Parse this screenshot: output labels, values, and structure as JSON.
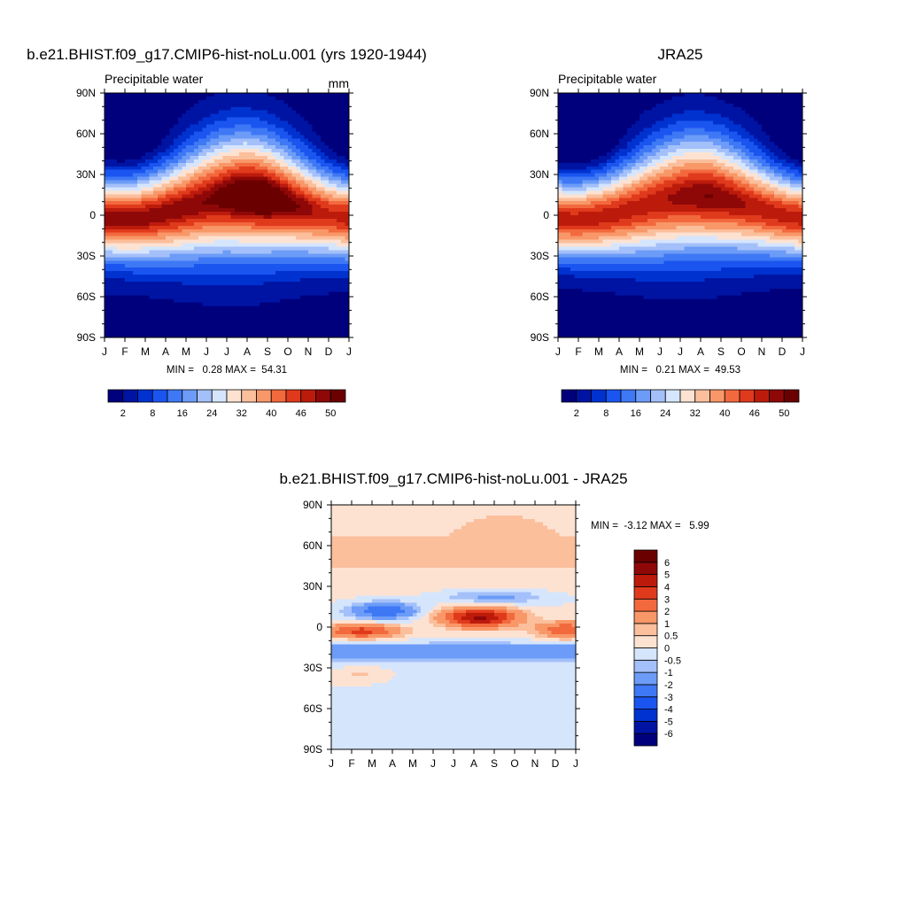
{
  "chart_data": [
    {
      "type": "heatmap",
      "title": "b.e21.BHIST.f09_g17.CMIP6-hist-noLu.001 (yrs 1920-1944)",
      "left_string": "Precipitable water",
      "right_string": "mm",
      "x_ticks": [
        "J",
        "F",
        "M",
        "A",
        "M",
        "J",
        "J",
        "A",
        "S",
        "O",
        "N",
        "D",
        "J"
      ],
      "y_ticks": [
        "90N",
        "60N",
        "30N",
        "0",
        "30S",
        "60S",
        "90S"
      ],
      "xlim": [
        0,
        12
      ],
      "ylim": [
        -90,
        90
      ],
      "min_max_label": "MIN =   0.28 MAX =  54.31",
      "min": 0.28,
      "max": 54.31,
      "colorbar": {
        "levels": [
          2,
          5,
          8,
          12,
          16,
          20,
          24,
          28,
          32,
          36,
          40,
          43,
          46,
          48,
          50
        ],
        "labels": [
          "2",
          "8",
          "16",
          "24",
          "32",
          "40",
          "46",
          "50"
        ],
        "colors": [
          "#00007d",
          "#0014a3",
          "#0032d0",
          "#1a55f0",
          "#3f78f5",
          "#6c9cf7",
          "#a4c0fa",
          "#d5e5fc",
          "#fde2d2",
          "#fbbf9c",
          "#f89768",
          "#f3693e",
          "#e03a1c",
          "#bc1b0c",
          "#8f0808",
          "#6b0000"
        ]
      }
    },
    {
      "type": "heatmap",
      "title": "JRA25",
      "left_string": "Precipitable water",
      "right_string": "",
      "x_ticks": [
        "J",
        "F",
        "M",
        "A",
        "M",
        "J",
        "J",
        "A",
        "S",
        "O",
        "N",
        "D",
        "J"
      ],
      "y_ticks": [
        "90N",
        "60N",
        "30N",
        "0",
        "30S",
        "60S",
        "90S"
      ],
      "xlim": [
        0,
        12
      ],
      "ylim": [
        -90,
        90
      ],
      "min_max_label": "MIN =   0.21 MAX =  49.53",
      "min": 0.21,
      "max": 49.53,
      "colorbar": {
        "levels": [
          2,
          5,
          8,
          12,
          16,
          20,
          24,
          28,
          32,
          36,
          40,
          43,
          46,
          48,
          50
        ],
        "labels": [
          "2",
          "8",
          "16",
          "24",
          "32",
          "40",
          "46",
          "50"
        ],
        "colors": [
          "#00007d",
          "#0014a3",
          "#0032d0",
          "#1a55f0",
          "#3f78f5",
          "#6c9cf7",
          "#a4c0fa",
          "#d5e5fc",
          "#fde2d2",
          "#fbbf9c",
          "#f89768",
          "#f3693e",
          "#e03a1c",
          "#bc1b0c",
          "#8f0808",
          "#6b0000"
        ]
      }
    },
    {
      "type": "heatmap",
      "title": "b.e21.BHIST.f09_g17.CMIP6-hist-noLu.001 - JRA25",
      "x_ticks": [
        "J",
        "F",
        "M",
        "A",
        "M",
        "J",
        "J",
        "A",
        "S",
        "O",
        "N",
        "D",
        "J"
      ],
      "y_ticks": [
        "90N",
        "60N",
        "30N",
        "0",
        "30S",
        "60S",
        "90S"
      ],
      "xlim": [
        0,
        12
      ],
      "ylim": [
        -90,
        90
      ],
      "min_max_label": "MIN =  -3.12 MAX =   5.99",
      "min": -3.12,
      "max": 5.99,
      "colorbar": {
        "levels": [
          -6,
          -5,
          -4,
          -3,
          -2,
          -1,
          -0.5,
          0,
          0.5,
          1,
          2,
          3,
          4,
          5,
          6
        ],
        "labels": [
          "-6",
          "-5",
          "-4",
          "-3",
          "-2",
          "-1",
          "-0.5",
          "0",
          "0.5",
          "1",
          "2",
          "3",
          "4",
          "5",
          "6"
        ],
        "colors": [
          "#00007d",
          "#0014a3",
          "#0032d0",
          "#1a55f0",
          "#3f78f5",
          "#6c9cf7",
          "#a4c0fa",
          "#d5e5fc",
          "#fde2d2",
          "#fbbf9c",
          "#f89768",
          "#f3693e",
          "#e03a1c",
          "#bc1b0c",
          "#8f0808",
          "#6b0000"
        ]
      }
    }
  ]
}
